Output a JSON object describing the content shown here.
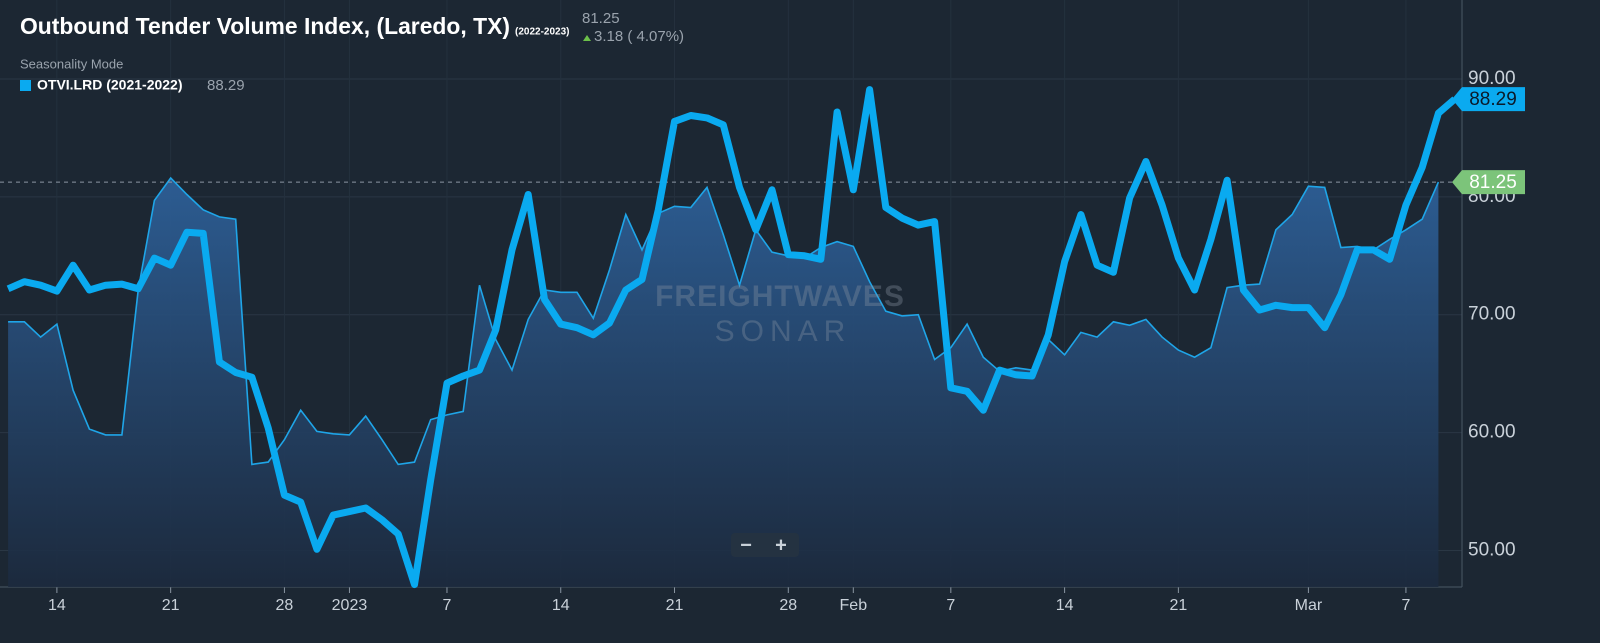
{
  "chart_data": {
    "type": "line",
    "title": "Outbound Tender Volume Index, (Laredo, TX)",
    "title_suffix": "(2022-2023)",
    "change": "3.18 ( 4.07%)",
    "mode": "Seasonality Mode",
    "watermark": [
      "FREIGHTWAVES",
      "SONAR"
    ],
    "zoom": [
      "−",
      "+"
    ],
    "x": [
      -21,
      -20,
      -19,
      -18,
      -17,
      -16,
      -15,
      -14,
      -13,
      -12,
      -11,
      -10,
      -9,
      -8,
      -7,
      -6,
      -5,
      -4,
      -3,
      -2,
      -1,
      0,
      1,
      2,
      3,
      4,
      5,
      6,
      7,
      8,
      9,
      10,
      11,
      12,
      13,
      14,
      15,
      16,
      17,
      18,
      19,
      20,
      21,
      22,
      23,
      24,
      25,
      26,
      27,
      28,
      29,
      30,
      31,
      32,
      33,
      34,
      35,
      36,
      37,
      38,
      39,
      40,
      41,
      42,
      43,
      44,
      45,
      46,
      47,
      48,
      49,
      50,
      51,
      52,
      53,
      54,
      55,
      56,
      57,
      58,
      59,
      60,
      61,
      62,
      63,
      64,
      65,
      66,
      67,
      68
    ],
    "xlim": [
      -21.5,
      68.45
    ],
    "xticks": [
      {
        "value": -18,
        "label": "14"
      },
      {
        "value": -11,
        "label": "21"
      },
      {
        "value": -4,
        "label": "28"
      },
      {
        "value": 0,
        "label": "2023"
      },
      {
        "value": 6,
        "label": "7"
      },
      {
        "value": 13,
        "label": "14"
      },
      {
        "value": 20,
        "label": "21"
      },
      {
        "value": 27,
        "label": "28"
      },
      {
        "value": 31,
        "label": "Feb"
      },
      {
        "value": 37,
        "label": "7"
      },
      {
        "value": 44,
        "label": "14"
      },
      {
        "value": 51,
        "label": "21"
      },
      {
        "value": 59,
        "label": "Mar"
      },
      {
        "value": 65,
        "label": "7"
      }
    ],
    "ylim": [
      46.9,
      96.7
    ],
    "yticks": [
      {
        "value": 50,
        "label": "50.00"
      },
      {
        "value": 60,
        "label": "60.00"
      },
      {
        "value": 70,
        "label": "70.00"
      },
      {
        "value": 80,
        "label": "80.00"
      },
      {
        "value": 90,
        "label": "90.00"
      }
    ],
    "series": [
      {
        "name": "(2022-2023)",
        "color": "#1fa5e8",
        "fill": "area",
        "badge_color": "#7cc47a",
        "values": [
          69.4,
          69.4,
          68.1,
          69.2,
          63.6,
          60.3,
          59.8,
          59.8,
          72.1,
          79.7,
          81.6,
          80.2,
          78.9,
          78.3,
          78.1,
          57.3,
          57.5,
          59.4,
          61.9,
          60.1,
          59.9,
          59.8,
          61.4,
          59.4,
          57.3,
          57.5,
          61.1,
          61.5,
          61.8,
          72.5,
          67.9,
          65.3,
          69.6,
          72.1,
          71.9,
          71.9,
          69.7,
          73.8,
          78.5,
          75.5,
          78.6,
          79.2,
          79.1,
          80.8,
          76.8,
          72.5,
          77.2,
          75.3,
          75.0,
          74.8,
          75.7,
          76.2,
          75.8,
          72.8,
          70.3,
          69.9,
          70.0,
          66.2,
          67.2,
          69.2,
          66.4,
          65.2,
          65.5,
          65.3,
          67.9,
          66.6,
          68.5,
          68.1,
          69.4,
          69.1,
          69.6,
          68.1,
          67.0,
          66.4,
          67.2,
          72.3,
          72.5,
          72.6,
          77.2,
          78.5,
          80.9,
          80.8,
          75.7,
          75.8,
          75.5,
          76.4,
          77.2,
          78.1,
          81.25,
          null
        ]
      },
      {
        "name": "OTVI.LRD (2021-2022)",
        "color": "#0aaaf0",
        "badge_color": "#0aaaf0",
        "values": [
          72.2,
          72.8,
          72.5,
          72.0,
          74.2,
          72.1,
          72.5,
          72.6,
          72.2,
          74.8,
          74.2,
          77.0,
          76.9,
          66.0,
          65.1,
          64.7,
          60.4,
          54.7,
          54.1,
          50.1,
          53.0,
          53.3,
          53.6,
          52.6,
          51.4,
          47.1,
          56.0,
          64.2,
          64.8,
          65.3,
          68.7,
          75.5,
          80.2,
          71.3,
          69.2,
          68.9,
          68.3,
          69.3,
          72.1,
          73.0,
          78.9,
          86.4,
          86.9,
          86.7,
          86.1,
          80.8,
          77.2,
          80.6,
          75.1,
          75.0,
          74.7,
          87.2,
          80.6,
          89.1,
          79.1,
          78.2,
          77.6,
          77.9,
          63.8,
          63.5,
          61.9,
          65.3,
          64.9,
          64.8,
          68.3,
          74.5,
          78.5,
          74.2,
          73.6,
          79.9,
          83.0,
          79.3,
          74.8,
          72.1,
          76.4,
          81.4,
          72.1,
          70.4,
          70.8,
          70.6,
          70.6,
          68.9,
          71.7,
          75.5,
          75.5,
          74.7,
          79.3,
          82.5,
          87.1,
          88.29
        ]
      }
    ],
    "grid": true
  }
}
